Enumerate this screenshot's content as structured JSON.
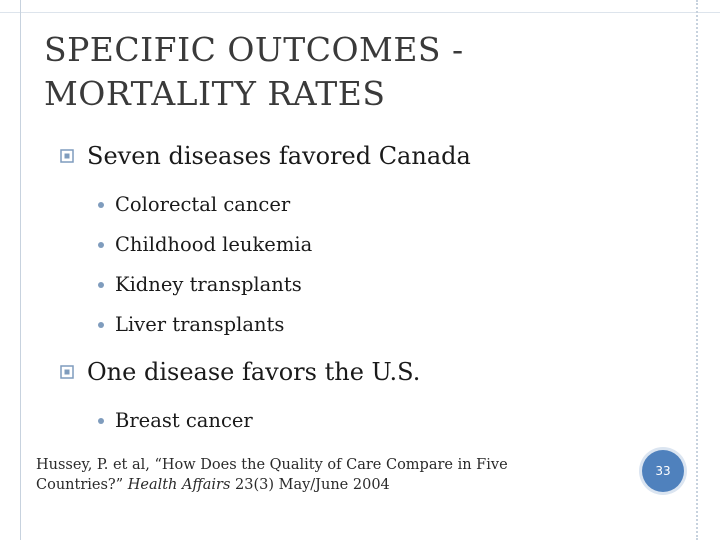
{
  "slide": {
    "title_line1": "SPECIFIC OUTCOMES -",
    "title_line2": "MORTALITY RATES",
    "groups": [
      {
        "heading": "Seven diseases favored Canada",
        "items": [
          "Colorectal cancer",
          "Childhood leukemia",
          "Kidney transplants",
          "Liver transplants"
        ]
      },
      {
        "heading": "One disease favors the U.S.",
        "items": [
          "Breast cancer"
        ]
      }
    ],
    "citation": {
      "part1": "Hussey, P. et al, “How Does the Quality of Care Compare in Five Countries?” ",
      "journal": "Health Affairs",
      "part2": " 23(3) May/June 2004"
    },
    "page_number": "33"
  },
  "colors": {
    "accent": "#4f81bd",
    "bullet": "#7f9cbd",
    "title": "#3a3a3a"
  }
}
